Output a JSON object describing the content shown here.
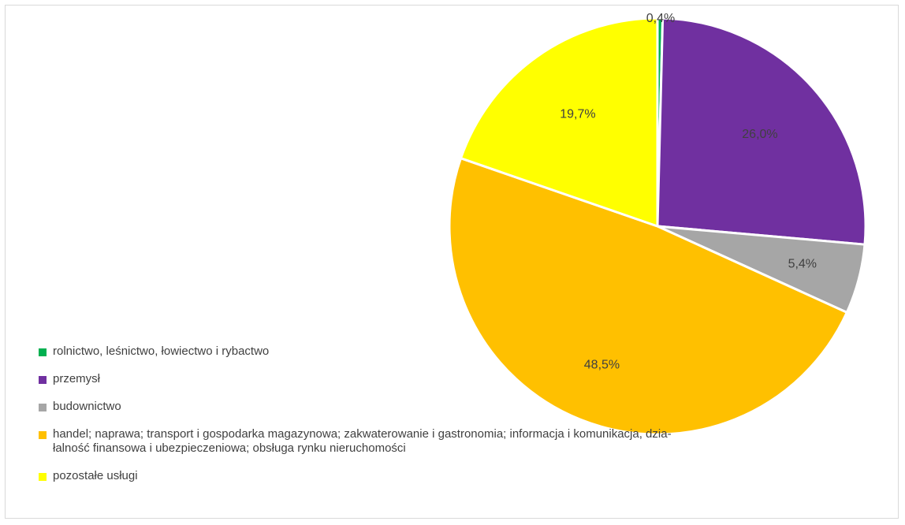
{
  "chart_data": {
    "type": "pie",
    "slices": [
      {
        "label": "rolnictwo, leśnictwo, łowiectwo i rybactwo",
        "value": 0.4,
        "display": "0,4%",
        "color": "#00B050"
      },
      {
        "label": "przemysł",
        "value": 26.0,
        "display": "26,0%",
        "color": "#7030A0"
      },
      {
        "label": "budownictwo",
        "value": 5.4,
        "display": "5,4%",
        "color": "#A6A6A6"
      },
      {
        "label": "handel; naprawa; transport i gospodarka magazynowa; zakwaterowanie i gastronomia; informacja i komunikacja, dzia-łalność finansowa i ubezpieczeniowa; obsługa rynku nieruchomości",
        "value": 48.5,
        "display": "48,5%",
        "color": "#FFC000"
      },
      {
        "label": "pozostałe usługi",
        "value": 19.7,
        "display": "19,7%",
        "color": "#FFFF00"
      }
    ],
    "legend": {
      "position": "bottom-left",
      "items": [
        {
          "label": "rolnictwo, leśnictwo, łowiectwo i rybactwo",
          "color": "#00B050"
        },
        {
          "label": "przemysł",
          "color": "#7030A0"
        },
        {
          "label": "budownictwo",
          "color": "#A6A6A6"
        },
        {
          "label_lines": [
            "handel; naprawa; transport i gospodarka magazynowa; zakwaterowanie i gastronomia; informacja i komunikacja, dzia-",
            "łalność finansowa i ubezpieczeniowa; obsługa rynku nieruchomości"
          ],
          "color": "#FFC000"
        },
        {
          "label": "pozostałe usługi",
          "color": "#FFFF00"
        }
      ]
    }
  }
}
